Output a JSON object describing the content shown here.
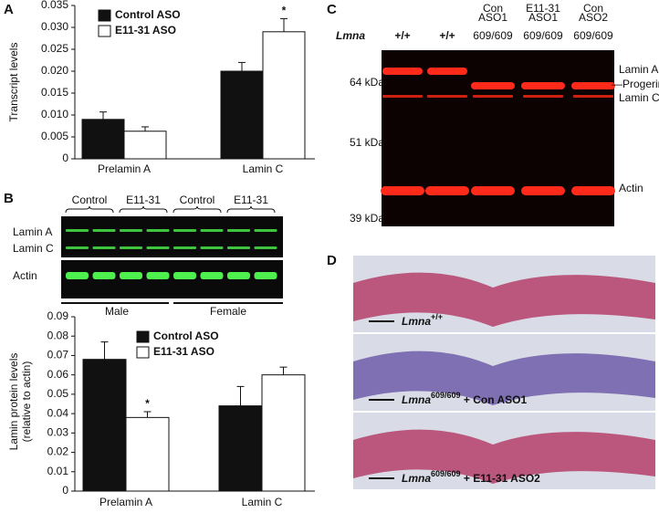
{
  "panel_labels": [
    "A",
    "B",
    "C",
    "D"
  ],
  "chart_data": [
    {
      "type": "bar",
      "ylabel": "Transcript levels",
      "categories": [
        "Prelamin A",
        "Lamin C"
      ],
      "series": [
        {
          "name": "Control ASO",
          "color": "#111111",
          "values": [
            0.009,
            0.02
          ],
          "errors": [
            0.0017,
            0.002
          ]
        },
        {
          "name": "E11-31 ASO",
          "color": "#ffffff",
          "values": [
            0.0063,
            0.029
          ],
          "errors": [
            0.001,
            0.003
          ]
        }
      ],
      "ylim": [
        0,
        0.035
      ],
      "yticks": [
        0,
        0.005,
        {
          "value": 0.01,
          "label": "0.010"
        },
        0.015,
        {
          "value": 0.02,
          "label": "0.020"
        },
        0.025,
        {
          "value": 0.03,
          "label": "0.030"
        },
        0.035
      ],
      "annotations": [
        "*"
      ]
    },
    {
      "type": "bar",
      "ylabel": [
        "Lamin protein levels",
        "(relative to actin)"
      ],
      "categories": [
        "Prelamin A",
        "Lamin C"
      ],
      "series": [
        {
          "name": "Control ASO",
          "color": "#111111",
          "values": [
            0.068,
            0.044
          ],
          "errors": [
            0.009,
            0.01
          ]
        },
        {
          "name": "E11-31 ASO",
          "color": "#ffffff",
          "values": [
            0.038,
            0.06
          ],
          "errors": [
            0.003,
            0.004
          ]
        }
      ],
      "ylim": [
        0,
        0.09
      ],
      "yticks": [
        0,
        0.01,
        0.02,
        0.03,
        0.04,
        0.05,
        0.06,
        0.07,
        0.08,
        0.09
      ],
      "annotations": [
        "*"
      ]
    }
  ],
  "blot_b": {
    "groups": [
      "Control",
      "E11-31",
      "Control",
      "E11-31"
    ],
    "rows": [
      "Lamin A",
      "Lamin C",
      "Actin"
    ],
    "sexes": [
      "Male",
      "Female"
    ]
  },
  "blot_c": {
    "gene": "Lmna",
    "lanes": [
      [
        "+/+"
      ],
      [
        "+/+"
      ],
      [
        "Con",
        "ASO1",
        "609/609"
      ],
      [
        "E11-31",
        "ASO1",
        "609/609"
      ],
      [
        "Con",
        "ASO2",
        "609/609"
      ]
    ],
    "markers": [
      "64 kDa",
      "51 kDa",
      "39 kDa"
    ],
    "bands": [
      "Lamin A",
      "—Progerin",
      "Lamin C",
      "Actin"
    ]
  },
  "histology_d": {
    "images": [
      {
        "gene": "Lmna",
        "allele": "+/+"
      },
      {
        "gene": "Lmna",
        "allele": "609/609",
        "treatment": " + Con ASO1"
      },
      {
        "gene": "Lmna",
        "allele": "609/609",
        "treatment": " + E11-31 ASO2"
      }
    ]
  }
}
